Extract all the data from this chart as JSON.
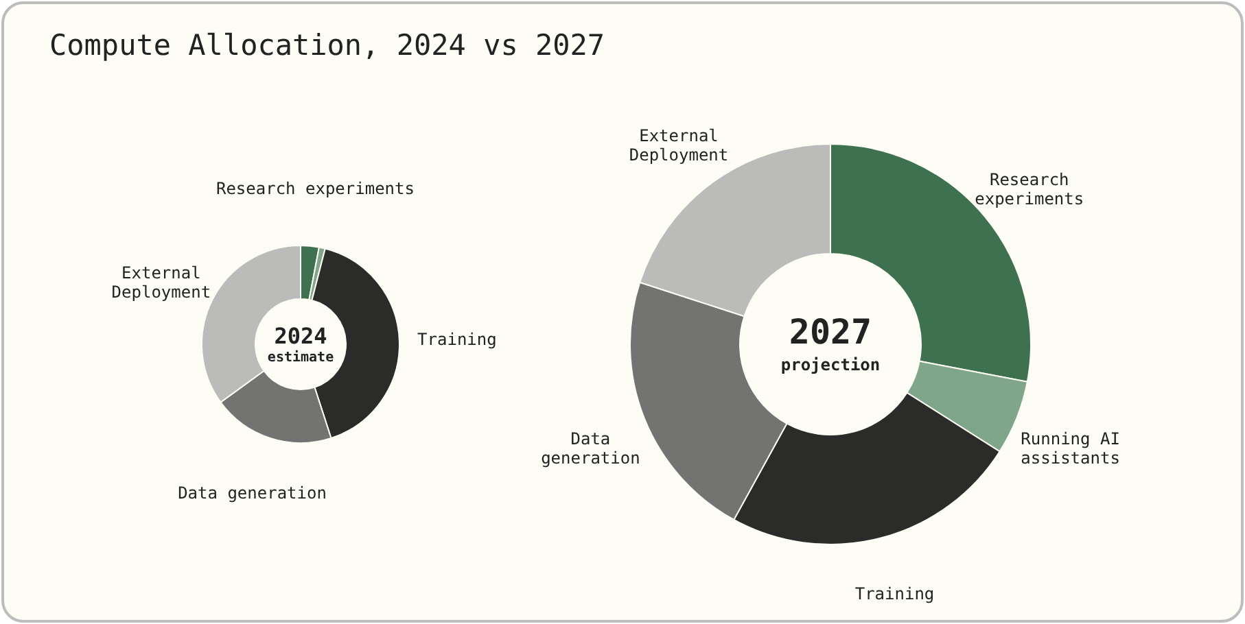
{
  "chart_data": [
    {
      "type": "donut",
      "title": "2024",
      "subtitle": "estimate",
      "annotations": [
        "Compute Allocation, 2024 vs 2027"
      ],
      "categories": [
        "Research experiments",
        null,
        "Training",
        "Data generation",
        "External\nDeployment"
      ],
      "values": [
        3,
        1,
        41,
        20,
        35
      ],
      "colors": [
        "#3e7150",
        "#7fa68a",
        "#2b2b29",
        "#737371",
        "#bbbbb9"
      ]
    },
    {
      "type": "donut",
      "title": "2027",
      "subtitle": "projection",
      "categories": [
        "Research\nexperiments",
        "Running AI\nassistants",
        "Training",
        "Data\ngeneration",
        "External\nDeployment"
      ],
      "values": [
        28,
        6,
        24,
        22,
        20
      ],
      "colors": [
        "#3e7150",
        "#7fa68a",
        "#2b2b29",
        "#737371",
        "#bbbbb9"
      ]
    }
  ]
}
